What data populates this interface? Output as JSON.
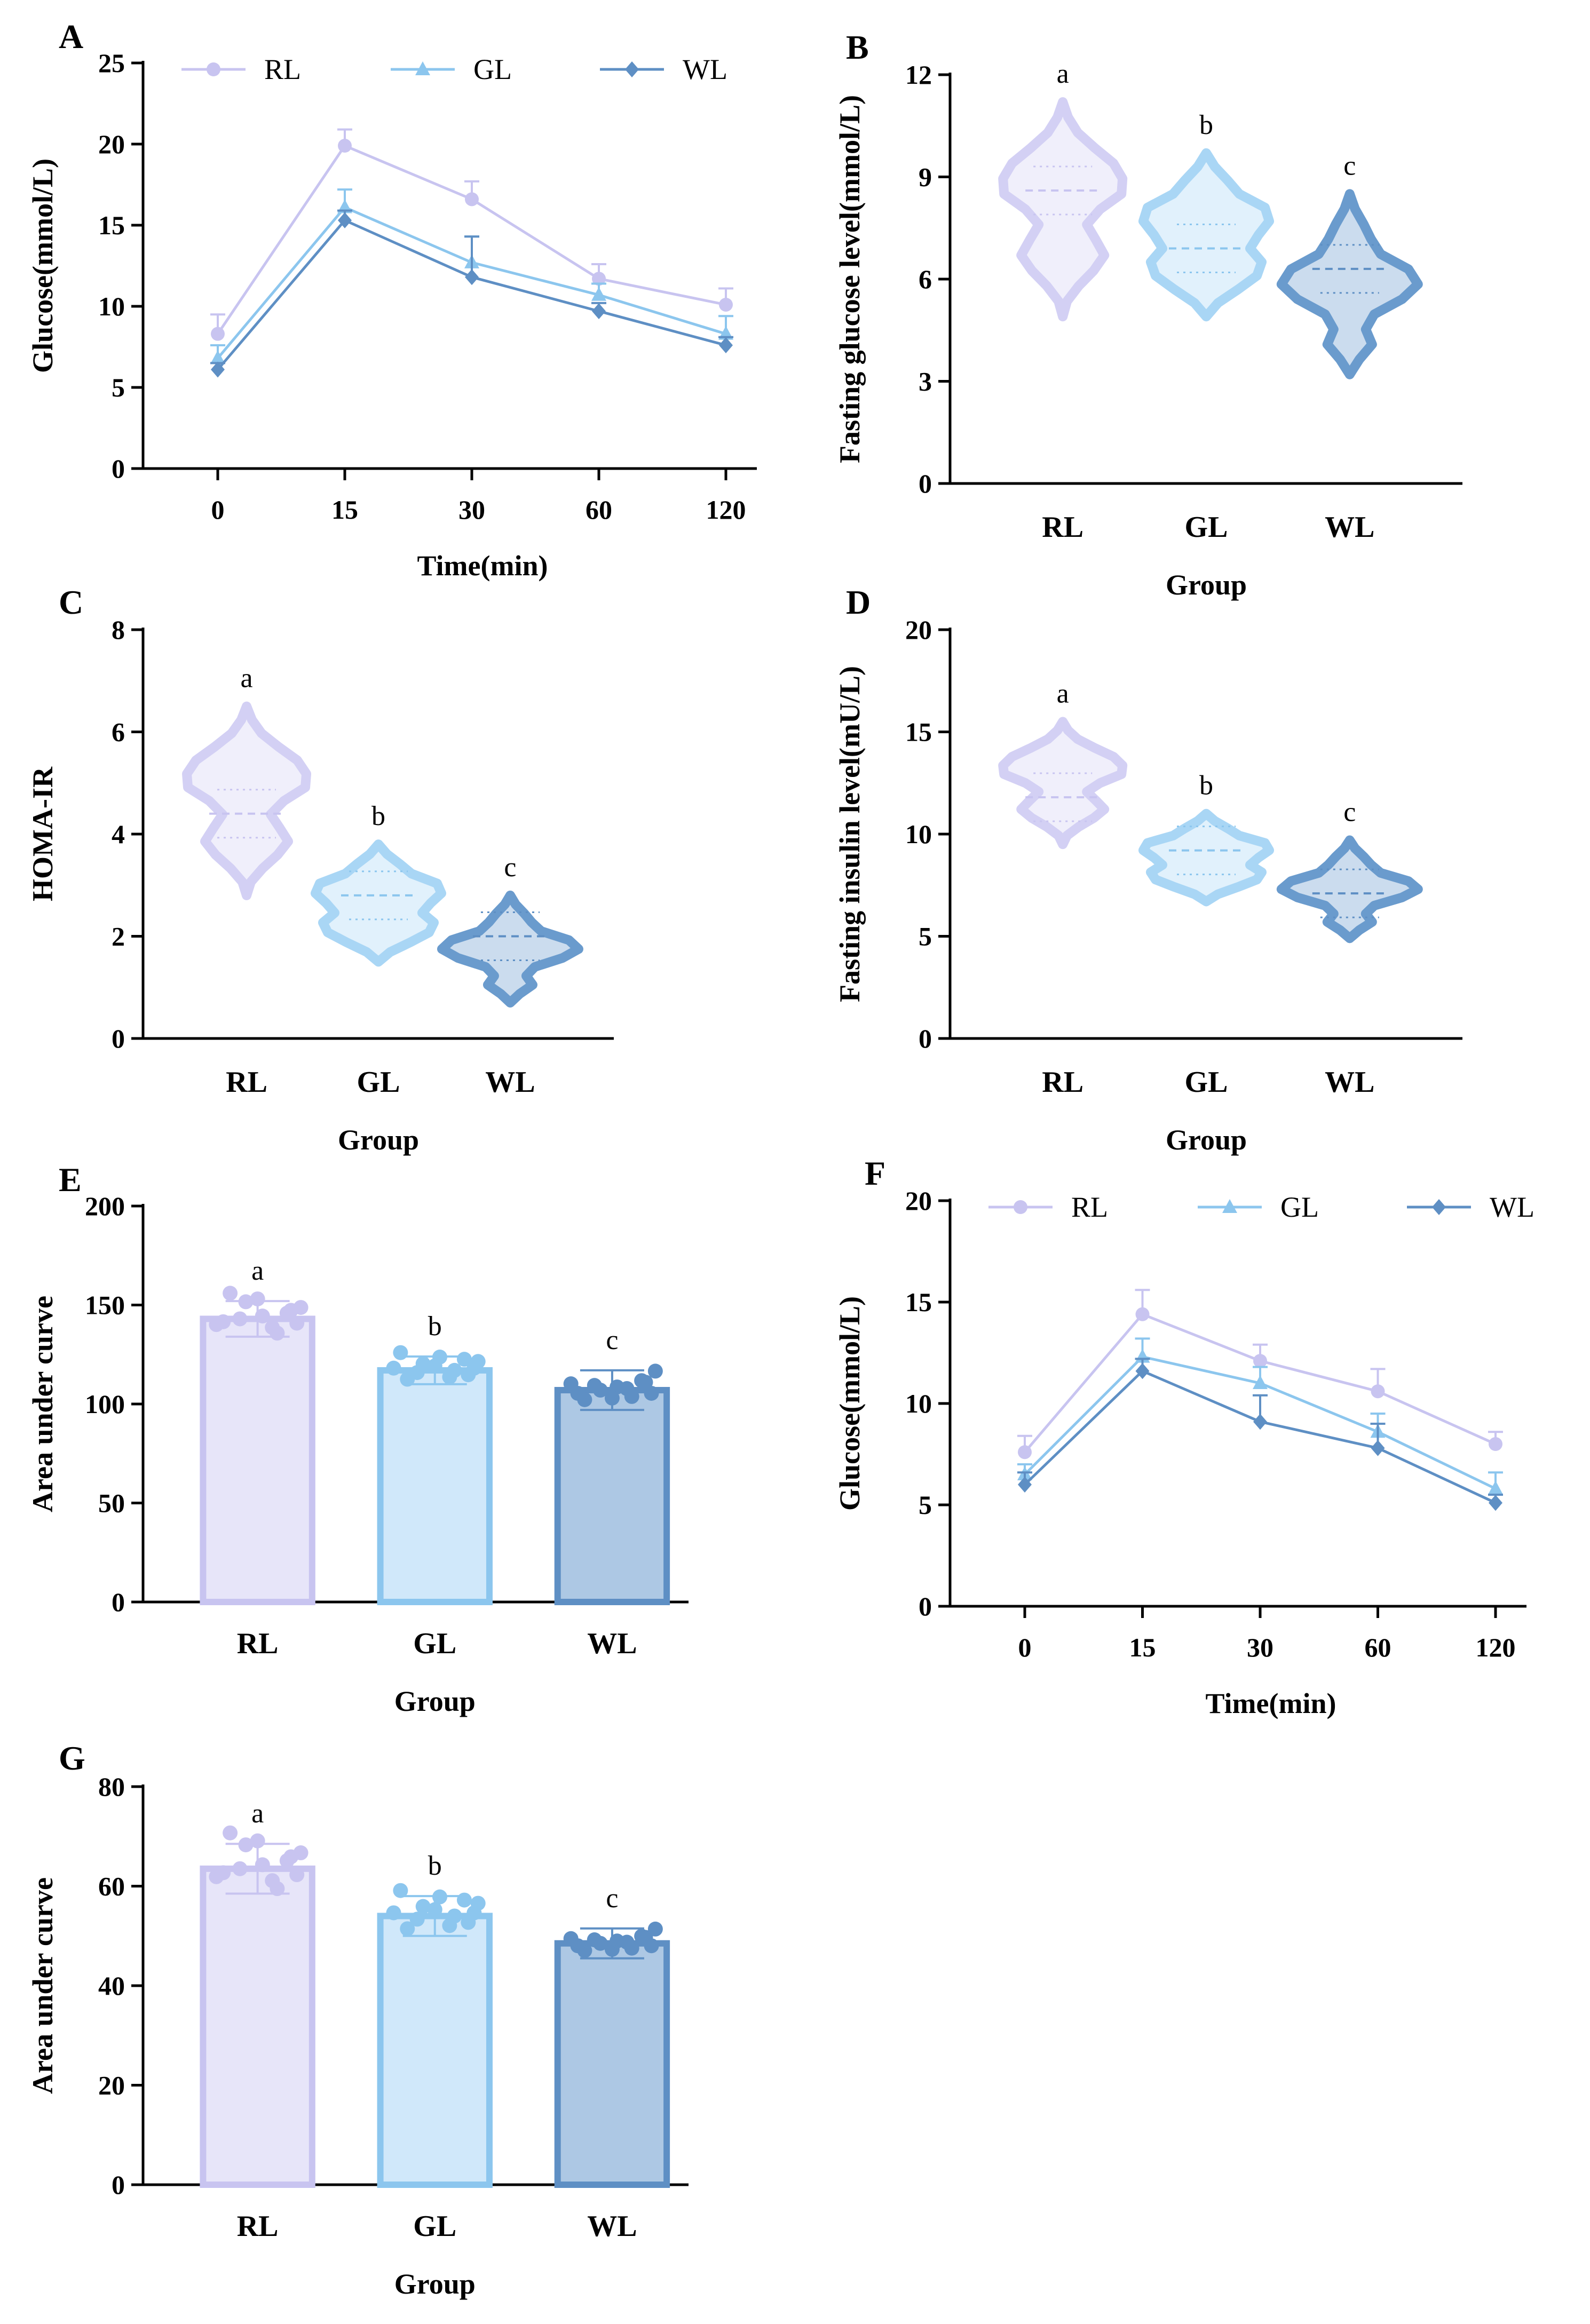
{
  "colors": {
    "RL": "#d3d0f4",
    "GL": "#a9d6f5",
    "WL": "#6a9bcd",
    "RL_dark": "#c8c4f0",
    "GL_dark": "#8cc6ee",
    "WL_dark": "#5e8fc4"
  },
  "chart_data": [
    {
      "panel": "A",
      "type": "line",
      "x": [
        "0",
        "15",
        "30",
        "60",
        "120"
      ],
      "ylabel": "Glucose(mmol/L)",
      "xlabel": "Time(min)",
      "ylim": [
        0,
        25
      ],
      "yticks": [
        0,
        5,
        10,
        15,
        20,
        25
      ],
      "series": [
        {
          "name": "RL",
          "marker": "circle",
          "values": [
            8.3,
            19.9,
            16.6,
            11.7,
            10.1
          ],
          "err": [
            1.2,
            1.0,
            1.1,
            0.9,
            1.0
          ]
        },
        {
          "name": "GL",
          "marker": "triangle",
          "values": [
            6.8,
            16.1,
            12.7,
            10.7,
            8.3
          ],
          "err": [
            0.8,
            1.1,
            1.6,
            0.7,
            1.1
          ]
        },
        {
          "name": "WL",
          "marker": "diamond",
          "values": [
            6.1,
            15.3,
            11.8,
            9.7,
            7.6
          ],
          "err": [
            0.4,
            0.6,
            2.5,
            0.5,
            0.5
          ]
        }
      ]
    },
    {
      "panel": "B",
      "type": "violin",
      "categories": [
        "RL",
        "GL",
        "WL"
      ],
      "ylabel": "Fasting glucose level(mmol/L)",
      "xlabel": "Group",
      "ylim": [
        0,
        12
      ],
      "yticks": [
        0,
        3,
        6,
        9,
        12
      ],
      "median": [
        8.6,
        6.9,
        6.3
      ],
      "letters": [
        "a",
        "b",
        "c"
      ]
    },
    {
      "panel": "C",
      "type": "violin",
      "categories": [
        "RL",
        "GL",
        "WL"
      ],
      "ylabel": "HOMA-IR",
      "xlabel": "Group",
      "ylim": [
        0,
        8
      ],
      "yticks": [
        0,
        2,
        4,
        6,
        8
      ],
      "median": [
        4.4,
        2.8,
        2.0
      ],
      "letters": [
        "a",
        "b",
        "c"
      ]
    },
    {
      "panel": "D",
      "type": "violin",
      "categories": [
        "RL",
        "GL",
        "WL"
      ],
      "ylabel": "Fasting insulin level(mU/L)",
      "xlabel": "Group",
      "ylim": [
        0,
        20
      ],
      "yticks": [
        0,
        5,
        10,
        15,
        20
      ],
      "median": [
        11.8,
        9.2,
        7.1
      ],
      "letters": [
        "a",
        "b",
        "c"
      ]
    },
    {
      "panel": "E",
      "type": "bar",
      "categories": [
        "RL",
        "GL",
        "WL"
      ],
      "values": [
        143,
        117,
        107
      ],
      "err": [
        9,
        7,
        10
      ],
      "ylabel": "Area under curve",
      "xlabel": "Group",
      "ylim": [
        0,
        200
      ],
      "yticks": [
        0,
        50,
        100,
        150,
        200
      ],
      "letters": [
        "a",
        "b",
        "c"
      ]
    },
    {
      "panel": "F",
      "type": "line",
      "x": [
        "0",
        "15",
        "30",
        "60",
        "120"
      ],
      "ylabel": "Glucose(mmol/L)",
      "xlabel": "Time(min)",
      "ylim": [
        0,
        20
      ],
      "yticks": [
        0,
        5,
        10,
        15,
        20
      ],
      "series": [
        {
          "name": "RL",
          "marker": "circle",
          "values": [
            7.6,
            14.4,
            12.1,
            10.6,
            8.0
          ],
          "err": [
            0.8,
            1.2,
            0.8,
            1.1,
            0.6
          ]
        },
        {
          "name": "GL",
          "marker": "triangle",
          "values": [
            6.5,
            12.3,
            11.0,
            8.6,
            5.8
          ],
          "err": [
            0.5,
            0.9,
            0.8,
            0.9,
            0.8
          ]
        },
        {
          "name": "WL",
          "marker": "diamond",
          "values": [
            6.0,
            11.6,
            9.1,
            7.8,
            5.1
          ],
          "err": [
            0.6,
            0.6,
            1.3,
            1.2,
            0.4
          ]
        }
      ]
    },
    {
      "panel": "G",
      "type": "bar",
      "categories": [
        "RL",
        "GL",
        "WL"
      ],
      "values": [
        63.5,
        54.0,
        48.5
      ],
      "err": [
        5,
        4,
        3
      ],
      "ylabel": "Area under curve",
      "xlabel": "Group",
      "ylim": [
        0,
        80
      ],
      "yticks": [
        0,
        20,
        40,
        60,
        80
      ],
      "letters": [
        "a",
        "b",
        "c"
      ]
    }
  ]
}
